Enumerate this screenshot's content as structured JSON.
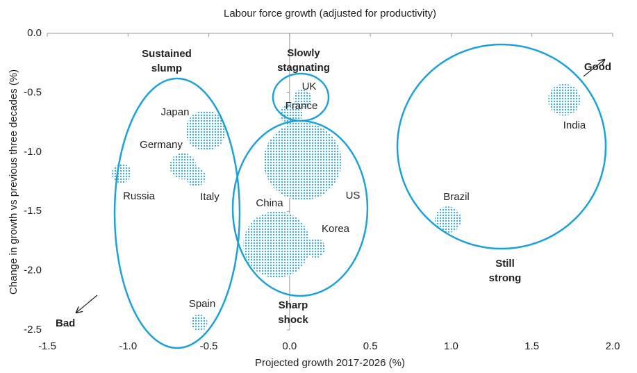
{
  "chart_data": {
    "type": "scatter",
    "title": "Labour force growth (adjusted for productivity)",
    "x_label": "Projected growth 2017-2026 (%)",
    "y_label": "Change in growth vs previous three decades (%)",
    "categories": [
      "India",
      "Brazil",
      "US",
      "China",
      "Korea",
      "UK",
      "France",
      "Japan",
      "Germany",
      "Italy",
      "Russia",
      "Spain"
    ],
    "x": [
      1.7,
      0.98,
      0.08,
      -0.08,
      0.16,
      0.08,
      0.01,
      -0.52,
      -0.66,
      -0.58,
      -1.04,
      -0.56
    ],
    "values": [
      -0.56,
      -1.57,
      -1.08,
      -1.78,
      -1.81,
      -0.55,
      -0.68,
      -0.82,
      -1.12,
      -1.21,
      -1.18,
      -2.44
    ],
    "sizes": [
      23,
      19,
      56,
      48,
      14,
      13,
      16,
      29,
      19,
      14,
      14,
      12
    ],
    "color": "#3fa9dc",
    "xlim": [
      -1.5,
      2.0
    ],
    "ylim": [
      -2.5,
      0.0
    ],
    "xticks": [
      {
        "value": -1.5,
        "label": "-1.5"
      },
      {
        "value": -1.0,
        "label": "-1.0"
      },
      {
        "value": -0.5,
        "label": "-0.5"
      },
      {
        "value": 0,
        "label": "0.0"
      },
      {
        "value": 0.5,
        "label": "0.5"
      },
      {
        "value": 1.0,
        "label": "1.0"
      },
      {
        "value": 1.5,
        "label": "1.5"
      },
      {
        "value": 2.0,
        "label": "2.0"
      }
    ],
    "yticks": [
      {
        "value": 0,
        "label": "0.0"
      },
      {
        "value": -0.5,
        "label": "-0.5"
      },
      {
        "value": -1.0,
        "label": "-1.0"
      },
      {
        "value": -1.5,
        "label": "-1.5"
      },
      {
        "value": -2.0,
        "label": "-2.0"
      },
      {
        "value": -2.5,
        "label": "-2.5"
      }
    ],
    "annotations": [
      {
        "lines": [
          "Sustained",
          "slump"
        ]
      },
      {
        "lines": [
          "Slowly",
          "stagnating"
        ]
      },
      {
        "lines": [
          "Good"
        ]
      },
      {
        "lines": [
          "Bad"
        ]
      },
      {
        "lines": [
          "Sharp",
          "shock"
        ]
      },
      {
        "lines": [
          "Still",
          "strong"
        ]
      }
    ]
  }
}
